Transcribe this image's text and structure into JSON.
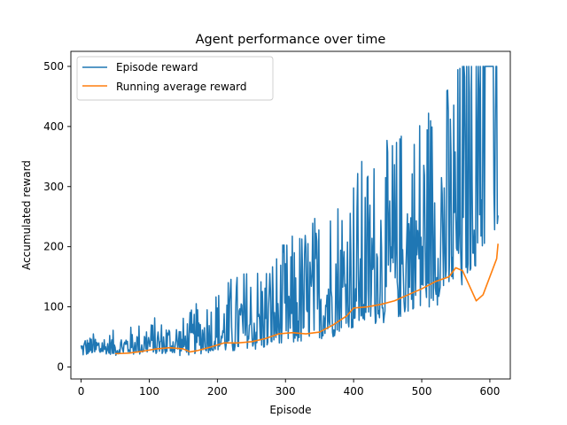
{
  "chart_data": {
    "type": "line",
    "title": "Agent performance over time",
    "xlabel": "Episode",
    "ylabel": "Accumulated reward",
    "xlim": [
      -15,
      630
    ],
    "ylim": [
      -20,
      525
    ],
    "xticks": [
      0,
      100,
      200,
      300,
      400,
      500,
      600
    ],
    "yticks": [
      0,
      100,
      200,
      300,
      400,
      500
    ],
    "legend_position": "top-left",
    "grid": false,
    "series": [
      {
        "name": "Episode reward",
        "color": "#1f77b4",
        "noise_keypoints": {
          "x": [
            0,
            50,
            100,
            150,
            200,
            250,
            300,
            350,
            400,
            450,
            500,
            550,
            580,
            600,
            612
          ],
          "base": [
            25,
            25,
            28,
            25,
            30,
            35,
            45,
            55,
            80,
            95,
            120,
            150,
            200,
            260,
            300
          ],
          "spread": [
            20,
            25,
            35,
            40,
            70,
            90,
            110,
            140,
            170,
            190,
            220,
            240,
            300,
            320,
            300
          ]
        },
        "min": 8,
        "max": 500,
        "count": 613
      },
      {
        "name": "Running average reward",
        "color": "#ff7f0e",
        "x": [
          50,
          70,
          90,
          110,
          130,
          150,
          160,
          170,
          190,
          210,
          230,
          250,
          270,
          290,
          310,
          330,
          350,
          370,
          390,
          400,
          420,
          440,
          460,
          480,
          500,
          520,
          540,
          550,
          560,
          570,
          580,
          590,
          600,
          610,
          612
        ],
        "values": [
          22,
          23,
          26,
          30,
          32,
          30,
          25,
          27,
          33,
          40,
          40,
          42,
          47,
          55,
          57,
          55,
          58,
          70,
          85,
          98,
          100,
          104,
          110,
          120,
          130,
          142,
          150,
          165,
          160,
          135,
          110,
          120,
          150,
          180,
          205
        ]
      }
    ]
  }
}
